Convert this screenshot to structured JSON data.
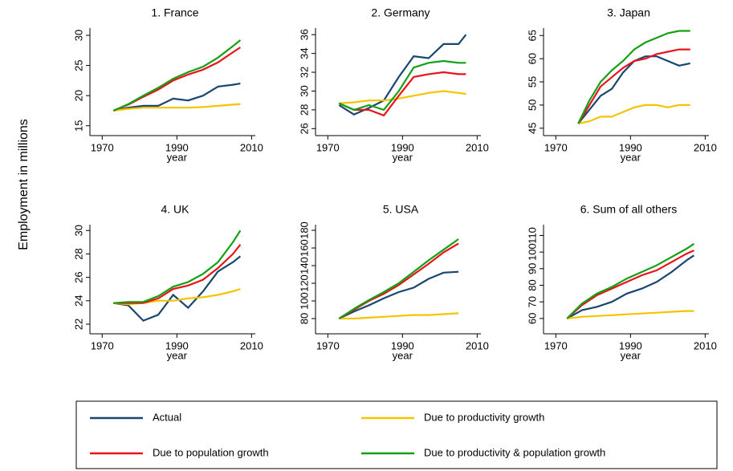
{
  "ylabel": "Employment in millions",
  "legend": {
    "items": [
      {
        "name": "Actual",
        "color": "#1a476f"
      },
      {
        "name": "Due to productivity growth",
        "color": "#f5c400"
      },
      {
        "name": "Due to population growth",
        "color": "#e8141c"
      },
      {
        "name": "Due to productivity & population growth",
        "color": "#14a014"
      }
    ]
  },
  "chart_data": [
    {
      "type": "line",
      "title": "1. France",
      "xlabel": "year",
      "x": [
        1973,
        1977,
        1981,
        1985,
        1989,
        1993,
        1997,
        2001,
        2005,
        2007
      ],
      "xlim": [
        1968,
        2011
      ],
      "xticks": [
        1970,
        1990,
        2010
      ],
      "ylim": [
        13.9,
        31.2
      ],
      "yticks": [
        15,
        20,
        25,
        30
      ],
      "series": [
        {
          "color": "#1a476f",
          "values": [
            17.5,
            18,
            18.3,
            18.3,
            19.5,
            19.2,
            20,
            21.5,
            21.8,
            22
          ]
        },
        {
          "color": "#f5c400",
          "values": [
            17.5,
            17.8,
            18,
            18,
            18,
            18,
            18.1,
            18.3,
            18.5,
            18.6
          ]
        },
        {
          "color": "#e8141c",
          "values": [
            17.5,
            18.5,
            19.8,
            21,
            22.5,
            23.5,
            24.3,
            25.5,
            27.2,
            28
          ]
        },
        {
          "color": "#14a014",
          "values": [
            17.5,
            18.6,
            20,
            21.3,
            22.8,
            23.9,
            24.8,
            26.3,
            28.2,
            29.2
          ]
        }
      ]
    },
    {
      "type": "line",
      "title": "2. Germany",
      "xlabel": "year",
      "x": [
        1973,
        1977,
        1981,
        1985,
        1989,
        1993,
        1997,
        2001,
        2005,
        2007
      ],
      "xlim": [
        1968,
        2011
      ],
      "xticks": [
        1970,
        1990,
        2010
      ],
      "ylim": [
        25.6,
        36.7
      ],
      "yticks": [
        26,
        28,
        30,
        32,
        34,
        36
      ],
      "series": [
        {
          "color": "#1a476f",
          "values": [
            28.5,
            27.5,
            28.2,
            29,
            31.5,
            33.7,
            33.5,
            35,
            35,
            36
          ]
        },
        {
          "color": "#f5c400",
          "values": [
            28.7,
            28.8,
            29,
            29,
            29.2,
            29.5,
            29.8,
            30,
            29.8,
            29.7
          ]
        },
        {
          "color": "#e8141c",
          "values": [
            28.7,
            28,
            28,
            27.4,
            29.5,
            31.5,
            31.8,
            32,
            31.8,
            31.8
          ]
        },
        {
          "color": "#14a014",
          "values": [
            28.7,
            28,
            28.5,
            28,
            30,
            32.5,
            33,
            33.2,
            33,
            33
          ]
        }
      ]
    },
    {
      "type": "line",
      "title": "3. Japan",
      "xlabel": "year",
      "x": [
        1976,
        1979,
        1982,
        1985,
        1988,
        1991,
        1994,
        1997,
        2000,
        2003,
        2006
      ],
      "xlim": [
        1968,
        2011
      ],
      "xticks": [
        1970,
        1990,
        2010
      ],
      "ylim": [
        44.1,
        66.6
      ],
      "yticks": [
        45,
        50,
        55,
        60,
        65
      ],
      "series": [
        {
          "color": "#1a476f",
          "values": [
            46,
            49,
            52,
            53.5,
            57,
            59.5,
            60.5,
            60.5,
            59.5,
            58.5,
            59
          ]
        },
        {
          "color": "#f5c400",
          "values": [
            46,
            46.5,
            47.5,
            47.5,
            48.5,
            49.5,
            50,
            50,
            49.5,
            50,
            50
          ]
        },
        {
          "color": "#e8141c",
          "values": [
            46,
            50,
            54,
            56,
            58,
            59.5,
            60,
            61,
            61.5,
            62,
            62
          ]
        },
        {
          "color": "#14a014",
          "values": [
            46,
            51,
            55,
            57.5,
            59.5,
            62,
            63.5,
            64.5,
            65.5,
            66,
            66
          ]
        }
      ]
    },
    {
      "type": "line",
      "title": "4. UK",
      "xlabel": "year",
      "x": [
        1973,
        1977,
        1981,
        1985,
        1989,
        1993,
        1997,
        2001,
        2005,
        2007
      ],
      "xlim": [
        1968,
        2011
      ],
      "xticks": [
        1970,
        1990,
        2010
      ],
      "ylim": [
        21.45,
        30.5
      ],
      "yticks": [
        22,
        24,
        26,
        28,
        30
      ],
      "series": [
        {
          "color": "#1a476f",
          "values": [
            23.8,
            23.6,
            22.3,
            22.8,
            24.5,
            23.4,
            24.8,
            26.5,
            27.3,
            27.8
          ]
        },
        {
          "color": "#f5c400",
          "values": [
            23.8,
            23.7,
            23.8,
            24,
            24,
            24.2,
            24.3,
            24.5,
            24.8,
            25
          ]
        },
        {
          "color": "#e8141c",
          "values": [
            23.8,
            23.8,
            23.8,
            24.2,
            25,
            25.3,
            25.8,
            26.8,
            28,
            28.8
          ]
        },
        {
          "color": "#14a014",
          "values": [
            23.8,
            23.9,
            23.9,
            24.4,
            25.2,
            25.6,
            26.3,
            27.3,
            29,
            30
          ]
        }
      ]
    },
    {
      "type": "line",
      "title": "5. USA",
      "xlabel": "year",
      "x": [
        1973,
        1977,
        1981,
        1985,
        1989,
        1993,
        1997,
        2001,
        2005
      ],
      "xlim": [
        1968,
        2011
      ],
      "xticks": [
        1970,
        1990,
        2010
      ],
      "ylim": [
        66.4,
        186.4
      ],
      "yticks": [
        80,
        100,
        120,
        140,
        160,
        180
      ],
      "series": [
        {
          "color": "#1a476f",
          "values": [
            80,
            88,
            95,
            103,
            110,
            115,
            125,
            132,
            133
          ]
        },
        {
          "color": "#f5c400",
          "values": [
            80,
            80,
            81,
            82,
            83,
            84,
            84,
            85,
            86
          ]
        },
        {
          "color": "#e8141c",
          "values": [
            80,
            90,
            100,
            108,
            118,
            130,
            142,
            155,
            165
          ]
        },
        {
          "color": "#14a014",
          "values": [
            80,
            91,
            101,
            110,
            120,
            133,
            146,
            158,
            170
          ]
        }
      ]
    },
    {
      "type": "line",
      "title": "6. Sum of all others",
      "xlabel": "year",
      "x": [
        1973,
        1977,
        1981,
        1985,
        1989,
        1993,
        1997,
        2001,
        2005,
        2007
      ],
      "xlim": [
        1968,
        2011
      ],
      "xticks": [
        1970,
        1990,
        2010
      ],
      "ylim": [
        52.7,
        116.5
      ],
      "yticks": [
        60,
        70,
        80,
        90,
        100,
        110
      ],
      "series": [
        {
          "color": "#1a476f",
          "values": [
            60,
            65,
            67,
            70,
            75,
            78,
            82,
            88,
            95,
            98
          ]
        },
        {
          "color": "#f5c400",
          "values": [
            60,
            61,
            61.5,
            62,
            62.5,
            63,
            63.5,
            64,
            64.5,
            64.5
          ]
        },
        {
          "color": "#e8141c",
          "values": [
            60,
            68,
            74,
            78,
            82,
            86,
            89,
            94,
            99,
            101
          ]
        },
        {
          "color": "#14a014",
          "values": [
            60,
            69,
            75,
            79,
            84,
            88,
            92,
            97,
            102,
            105
          ]
        }
      ]
    }
  ]
}
